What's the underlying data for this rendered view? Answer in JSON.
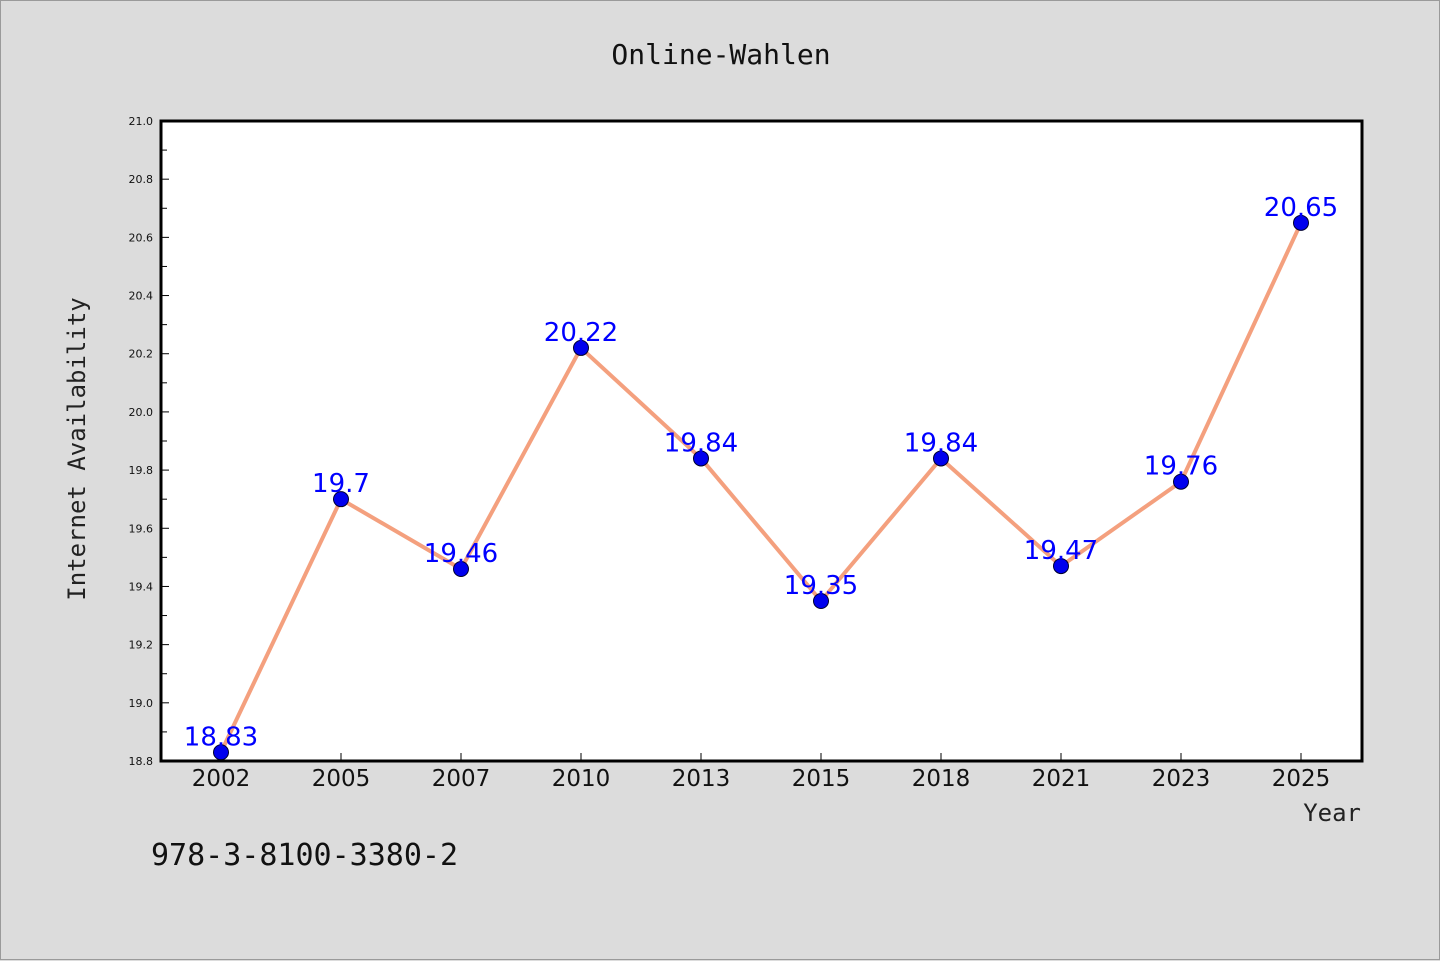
{
  "chart_data": {
    "type": "line",
    "title": "Online-Wahlen",
    "xlabel": "Year",
    "ylabel": "Internet Availability",
    "categories": [
      "2002",
      "2005",
      "2007",
      "2010",
      "2013",
      "2015",
      "2018",
      "2021",
      "2023",
      "2025"
    ],
    "series": [
      {
        "values": [
          18.83,
          19.7,
          19.46,
          20.22,
          19.84,
          19.35,
          19.84,
          19.47,
          19.76,
          20.65
        ],
        "labels": [
          "18.83",
          "19.7",
          "19.46",
          "20.22",
          "19.84",
          "19.35",
          "19.84",
          "19.47",
          "19.76",
          "20.65"
        ],
        "line_color": "#f4a07e",
        "marker_color": "#0000ee",
        "label_color": "#0000ff"
      }
    ],
    "ylim": [
      18.8,
      21.0
    ],
    "yticks": [
      "18.8",
      "19.0",
      "19.2",
      "19.4",
      "19.6",
      "19.8",
      "20.0",
      "20.2",
      "20.4",
      "20.6",
      "20.8",
      "21.0"
    ],
    "grid": false,
    "legend": "none"
  },
  "annotation": {
    "isbn": "978-3-8100-3380-2"
  },
  "colors": {
    "background": "#dcdcdc",
    "plot_background": "#ffffff",
    "frame": "#000000"
  }
}
